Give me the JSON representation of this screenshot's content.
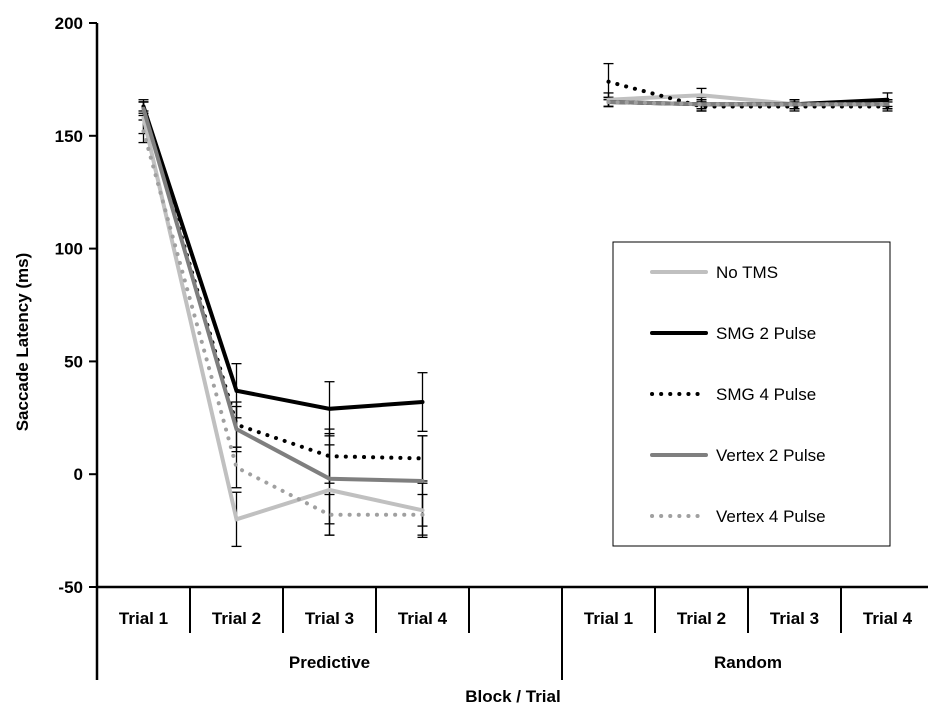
{
  "chart_data": {
    "type": "line",
    "title": "",
    "xlabel": "Block / Trial",
    "ylabel": "Saccade Latency (ms)",
    "ylim": [
      -50,
      200
    ],
    "yticks": [
      -50,
      0,
      50,
      100,
      150,
      200
    ],
    "grid": false,
    "legend_position": "right",
    "groups": [
      {
        "name": "Predictive",
        "categories": [
          "Trial 1",
          "Trial 2",
          "Trial 3",
          "Trial 4",
          ""
        ]
      },
      {
        "name": "Random",
        "categories": [
          "Trial 1",
          "Trial 2",
          "Trial 3",
          "Trial 4"
        ]
      }
    ],
    "series": [
      {
        "name": "No TMS",
        "color": "#c0c0c0",
        "dash": "solid",
        "predictive": [
          158,
          -20,
          -7,
          -16
        ],
        "predictive_err": [
          7,
          12,
          20,
          12
        ],
        "random": [
          166,
          168,
          164,
          164
        ],
        "random_err": [
          3,
          3,
          2,
          2
        ]
      },
      {
        "name": "SMG 2 Pulse",
        "color": "#000000",
        "dash": "solid",
        "predictive": [
          163,
          37,
          29,
          32
        ],
        "predictive_err": [
          3,
          12,
          12,
          13
        ],
        "random": [
          165,
          164,
          164,
          166
        ],
        "random_err": [
          2,
          3,
          2,
          3
        ]
      },
      {
        "name": "SMG 4 Pulse",
        "color": "#000000",
        "dash": "dotted",
        "predictive": [
          163,
          22,
          8,
          7
        ],
        "predictive_err": [
          2,
          10,
          12,
          10
        ],
        "random": [
          174,
          163,
          163,
          163
        ],
        "random_err": [
          8,
          2,
          2,
          2
        ]
      },
      {
        "name": "Vertex 2 Pulse",
        "color": "#7f7f7f",
        "dash": "solid",
        "predictive": [
          162,
          20,
          -2,
          -3
        ],
        "predictive_err": [
          3,
          10,
          20,
          20
        ],
        "random": [
          165,
          164,
          164,
          164
        ],
        "random_err": [
          2,
          2,
          2,
          2
        ]
      },
      {
        "name": "Vertex 4 Pulse",
        "color": "#a0a0a0",
        "dash": "dotted",
        "predictive": [
          152,
          3,
          -18,
          -18
        ],
        "predictive_err": [
          5,
          9,
          9,
          9
        ],
        "random": [
          165,
          164,
          164,
          164
        ],
        "random_err": [
          2,
          2,
          2,
          2
        ]
      }
    ]
  }
}
